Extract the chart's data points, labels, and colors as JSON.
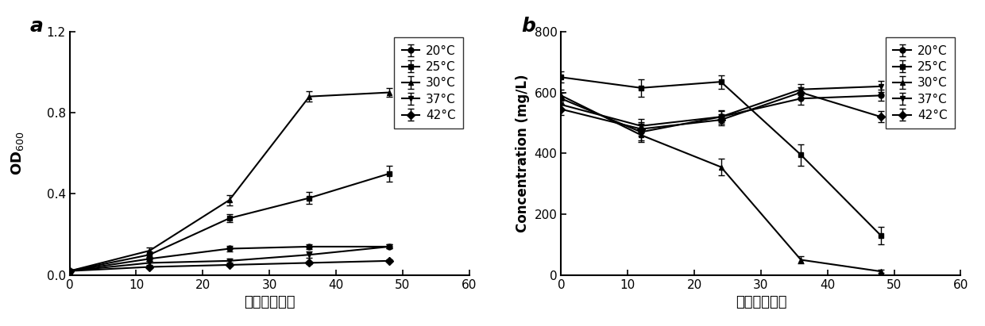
{
  "panel_a": {
    "title": "a",
    "xlabel": "时间（小时）",
    "ylabel_main": "OD",
    "ylabel_sub": "600",
    "xlim": [
      0,
      60
    ],
    "ylim": [
      0.0,
      1.2
    ],
    "xticks": [
      0,
      10,
      20,
      30,
      40,
      50,
      60
    ],
    "yticks": [
      0.0,
      0.4,
      0.8,
      1.2
    ],
    "series": [
      {
        "label": "20°C",
        "x": [
          0,
          12,
          24,
          36,
          48
        ],
        "y": [
          0.02,
          0.08,
          0.13,
          0.14,
          0.14
        ],
        "yerr": [
          0.005,
          0.01,
          0.012,
          0.012,
          0.01
        ],
        "marker": "o"
      },
      {
        "label": "25°C",
        "x": [
          0,
          12,
          24,
          36,
          48
        ],
        "y": [
          0.02,
          0.1,
          0.28,
          0.38,
          0.5
        ],
        "yerr": [
          0.005,
          0.015,
          0.02,
          0.03,
          0.04
        ],
        "marker": "s"
      },
      {
        "label": "30°C",
        "x": [
          0,
          12,
          24,
          36,
          48
        ],
        "y": [
          0.02,
          0.12,
          0.37,
          0.88,
          0.9
        ],
        "yerr": [
          0.005,
          0.015,
          0.025,
          0.025,
          0.022
        ],
        "marker": "^"
      },
      {
        "label": "37°C",
        "x": [
          0,
          12,
          24,
          36,
          48
        ],
        "y": [
          0.02,
          0.06,
          0.07,
          0.1,
          0.14
        ],
        "yerr": [
          0.004,
          0.01,
          0.01,
          0.015,
          0.01
        ],
        "marker": "v"
      },
      {
        "label": "42°C",
        "x": [
          0,
          12,
          24,
          36,
          48
        ],
        "y": [
          0.02,
          0.04,
          0.05,
          0.06,
          0.07
        ],
        "yerr": [
          0.003,
          0.005,
          0.005,
          0.006,
          0.006
        ],
        "marker": "D"
      }
    ]
  },
  "panel_b": {
    "title": "b",
    "xlabel": "时间（小时）",
    "ylabel": "Concentration (mg/L)",
    "xlim": [
      0,
      60
    ],
    "ylim": [
      0,
      800
    ],
    "xticks": [
      0,
      10,
      20,
      30,
      40,
      50,
      60
    ],
    "yticks": [
      0,
      200,
      400,
      600,
      800
    ],
    "series": [
      {
        "label": "20°C",
        "x": [
          0,
          12,
          24,
          36,
          48
        ],
        "y": [
          580,
          470,
          520,
          580,
          590
        ],
        "yerr": [
          18,
          28,
          22,
          20,
          18
        ],
        "marker": "o"
      },
      {
        "label": "25°C",
        "x": [
          0,
          12,
          24,
          36,
          48
        ],
        "y": [
          650,
          615,
          635,
          395,
          130
        ],
        "yerr": [
          18,
          28,
          22,
          35,
          28
        ],
        "marker": "s"
      },
      {
        "label": "30°C",
        "x": [
          0,
          12,
          24,
          36,
          48
        ],
        "y": [
          590,
          460,
          355,
          50,
          12
        ],
        "yerr": [
          18,
          22,
          28,
          12,
          5
        ],
        "marker": "^"
      },
      {
        "label": "37°C",
        "x": [
          0,
          12,
          24,
          36,
          48
        ],
        "y": [
          560,
          490,
          520,
          610,
          620
        ],
        "yerr": [
          18,
          22,
          18,
          18,
          18
        ],
        "marker": "v"
      },
      {
        "label": "42°C",
        "x": [
          0,
          12,
          24,
          36,
          48
        ],
        "y": [
          545,
          480,
          510,
          600,
          520
        ],
        "yerr": [
          18,
          22,
          18,
          18,
          18
        ],
        "marker": "D"
      }
    ]
  }
}
